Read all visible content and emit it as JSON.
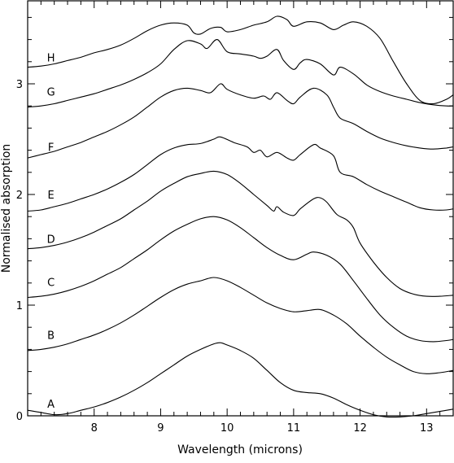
{
  "chart_data": {
    "type": "line",
    "title": "",
    "xlabel": "Wavelength (microns)",
    "ylabel": "Normalised absorption",
    "xlim": [
      7.0,
      13.4
    ],
    "ylim": [
      0.0,
      3.75
    ],
    "x_ticks": [
      "8",
      "9",
      "10",
      "11",
      "12",
      "13"
    ],
    "y_ticks": [
      "0",
      "1",
      "2",
      "3"
    ],
    "grid": false,
    "legend": "none",
    "series": [
      {
        "name": "A",
        "label_point": [
          7.35,
          0.11
        ],
        "points": [
          [
            7.0,
            0.05
          ],
          [
            7.2,
            0.03
          ],
          [
            7.4,
            0.01
          ],
          [
            7.6,
            0.02
          ],
          [
            7.8,
            0.05
          ],
          [
            8.0,
            0.08
          ],
          [
            8.2,
            0.12
          ],
          [
            8.4,
            0.17
          ],
          [
            8.6,
            0.23
          ],
          [
            8.8,
            0.3
          ],
          [
            9.0,
            0.38
          ],
          [
            9.2,
            0.46
          ],
          [
            9.4,
            0.54
          ],
          [
            9.6,
            0.6
          ],
          [
            9.8,
            0.65
          ],
          [
            9.9,
            0.66
          ],
          [
            10.0,
            0.64
          ],
          [
            10.2,
            0.59
          ],
          [
            10.4,
            0.52
          ],
          [
            10.6,
            0.41
          ],
          [
            10.8,
            0.3
          ],
          [
            11.0,
            0.23
          ],
          [
            11.2,
            0.21
          ],
          [
            11.4,
            0.2
          ],
          [
            11.6,
            0.16
          ],
          [
            11.8,
            0.1
          ],
          [
            12.0,
            0.05
          ],
          [
            12.2,
            0.01
          ],
          [
            12.4,
            -0.01
          ],
          [
            12.6,
            -0.01
          ],
          [
            12.8,
            0.0
          ],
          [
            13.0,
            0.02
          ],
          [
            13.2,
            0.04
          ],
          [
            13.4,
            0.06
          ]
        ]
      },
      {
        "name": "B",
        "label_point": [
          7.35,
          0.73
        ],
        "points": [
          [
            7.0,
            0.59
          ],
          [
            7.2,
            0.6
          ],
          [
            7.4,
            0.62
          ],
          [
            7.6,
            0.65
          ],
          [
            7.8,
            0.69
          ],
          [
            8.0,
            0.73
          ],
          [
            8.2,
            0.78
          ],
          [
            8.4,
            0.84
          ],
          [
            8.6,
            0.91
          ],
          [
            8.8,
            0.99
          ],
          [
            9.0,
            1.07
          ],
          [
            9.2,
            1.14
          ],
          [
            9.4,
            1.19
          ],
          [
            9.6,
            1.22
          ],
          [
            9.8,
            1.25
          ],
          [
            10.0,
            1.22
          ],
          [
            10.2,
            1.16
          ],
          [
            10.4,
            1.09
          ],
          [
            10.6,
            1.02
          ],
          [
            10.8,
            0.97
          ],
          [
            11.0,
            0.94
          ],
          [
            11.2,
            0.95
          ],
          [
            11.4,
            0.96
          ],
          [
            11.6,
            0.91
          ],
          [
            11.8,
            0.83
          ],
          [
            12.0,
            0.72
          ],
          [
            12.2,
            0.62
          ],
          [
            12.4,
            0.53
          ],
          [
            12.6,
            0.46
          ],
          [
            12.8,
            0.4
          ],
          [
            13.0,
            0.38
          ],
          [
            13.2,
            0.39
          ],
          [
            13.4,
            0.41
          ]
        ]
      },
      {
        "name": "C",
        "label_point": [
          7.35,
          1.21
        ],
        "points": [
          [
            7.0,
            1.07
          ],
          [
            7.2,
            1.08
          ],
          [
            7.4,
            1.1
          ],
          [
            7.6,
            1.13
          ],
          [
            7.8,
            1.17
          ],
          [
            8.0,
            1.22
          ],
          [
            8.2,
            1.28
          ],
          [
            8.4,
            1.34
          ],
          [
            8.6,
            1.42
          ],
          [
            8.8,
            1.5
          ],
          [
            9.0,
            1.59
          ],
          [
            9.2,
            1.67
          ],
          [
            9.4,
            1.73
          ],
          [
            9.6,
            1.78
          ],
          [
            9.8,
            1.8
          ],
          [
            10.0,
            1.77
          ],
          [
            10.2,
            1.7
          ],
          [
            10.4,
            1.61
          ],
          [
            10.6,
            1.52
          ],
          [
            10.8,
            1.45
          ],
          [
            11.0,
            1.41
          ],
          [
            11.2,
            1.46
          ],
          [
            11.3,
            1.48
          ],
          [
            11.5,
            1.45
          ],
          [
            11.7,
            1.37
          ],
          [
            11.9,
            1.22
          ],
          [
            12.1,
            1.06
          ],
          [
            12.3,
            0.91
          ],
          [
            12.5,
            0.8
          ],
          [
            12.7,
            0.72
          ],
          [
            12.9,
            0.68
          ],
          [
            13.1,
            0.67
          ],
          [
            13.3,
            0.68
          ],
          [
            13.4,
            0.69
          ]
        ]
      },
      {
        "name": "D",
        "label_point": [
          7.35,
          1.6
        ],
        "points": [
          [
            7.0,
            1.51
          ],
          [
            7.2,
            1.52
          ],
          [
            7.4,
            1.54
          ],
          [
            7.6,
            1.57
          ],
          [
            7.8,
            1.61
          ],
          [
            8.0,
            1.66
          ],
          [
            8.2,
            1.72
          ],
          [
            8.4,
            1.78
          ],
          [
            8.6,
            1.86
          ],
          [
            8.8,
            1.94
          ],
          [
            9.0,
            2.03
          ],
          [
            9.2,
            2.1
          ],
          [
            9.4,
            2.16
          ],
          [
            9.6,
            2.19
          ],
          [
            9.8,
            2.21
          ],
          [
            10.0,
            2.18
          ],
          [
            10.2,
            2.1
          ],
          [
            10.4,
            2.0
          ],
          [
            10.6,
            1.9
          ],
          [
            10.7,
            1.85
          ],
          [
            10.75,
            1.89
          ],
          [
            10.85,
            1.84
          ],
          [
            11.0,
            1.81
          ],
          [
            11.1,
            1.87
          ],
          [
            11.3,
            1.96
          ],
          [
            11.4,
            1.97
          ],
          [
            11.5,
            1.93
          ],
          [
            11.65,
            1.82
          ],
          [
            11.8,
            1.77
          ],
          [
            11.9,
            1.7
          ],
          [
            12.0,
            1.56
          ],
          [
            12.2,
            1.39
          ],
          [
            12.4,
            1.25
          ],
          [
            12.6,
            1.15
          ],
          [
            12.8,
            1.1
          ],
          [
            13.0,
            1.08
          ],
          [
            13.2,
            1.08
          ],
          [
            13.4,
            1.09
          ]
        ]
      },
      {
        "name": "E",
        "label_point": [
          7.35,
          2.0
        ],
        "points": [
          [
            7.0,
            1.85
          ],
          [
            7.2,
            1.86
          ],
          [
            7.4,
            1.89
          ],
          [
            7.6,
            1.92
          ],
          [
            7.8,
            1.96
          ],
          [
            8.0,
            2.0
          ],
          [
            8.2,
            2.05
          ],
          [
            8.4,
            2.11
          ],
          [
            8.6,
            2.18
          ],
          [
            8.8,
            2.27
          ],
          [
            9.0,
            2.36
          ],
          [
            9.2,
            2.42
          ],
          [
            9.4,
            2.45
          ],
          [
            9.6,
            2.46
          ],
          [
            9.8,
            2.5
          ],
          [
            9.9,
            2.52
          ],
          [
            10.1,
            2.47
          ],
          [
            10.3,
            2.43
          ],
          [
            10.4,
            2.38
          ],
          [
            10.5,
            2.4
          ],
          [
            10.6,
            2.34
          ],
          [
            10.75,
            2.38
          ],
          [
            10.9,
            2.33
          ],
          [
            11.0,
            2.31
          ],
          [
            11.1,
            2.36
          ],
          [
            11.3,
            2.45
          ],
          [
            11.4,
            2.42
          ],
          [
            11.6,
            2.35
          ],
          [
            11.7,
            2.2
          ],
          [
            11.9,
            2.16
          ],
          [
            12.1,
            2.09
          ],
          [
            12.3,
            2.03
          ],
          [
            12.5,
            1.98
          ],
          [
            12.7,
            1.93
          ],
          [
            12.9,
            1.88
          ],
          [
            13.1,
            1.86
          ],
          [
            13.3,
            1.86
          ],
          [
            13.4,
            1.87
          ]
        ]
      },
      {
        "name": "F",
        "label_point": [
          7.35,
          2.43
        ],
        "points": [
          [
            7.0,
            2.33
          ],
          [
            7.2,
            2.36
          ],
          [
            7.4,
            2.39
          ],
          [
            7.6,
            2.43
          ],
          [
            7.8,
            2.47
          ],
          [
            8.0,
            2.52
          ],
          [
            8.2,
            2.57
          ],
          [
            8.4,
            2.63
          ],
          [
            8.6,
            2.7
          ],
          [
            8.8,
            2.79
          ],
          [
            9.0,
            2.88
          ],
          [
            9.2,
            2.94
          ],
          [
            9.4,
            2.96
          ],
          [
            9.6,
            2.94
          ],
          [
            9.75,
            2.92
          ],
          [
            9.9,
            3.0
          ],
          [
            10.0,
            2.95
          ],
          [
            10.2,
            2.9
          ],
          [
            10.4,
            2.87
          ],
          [
            10.55,
            2.89
          ],
          [
            10.65,
            2.86
          ],
          [
            10.75,
            2.92
          ],
          [
            10.9,
            2.85
          ],
          [
            11.0,
            2.82
          ],
          [
            11.1,
            2.88
          ],
          [
            11.3,
            2.96
          ],
          [
            11.5,
            2.9
          ],
          [
            11.6,
            2.79
          ],
          [
            11.7,
            2.69
          ],
          [
            11.9,
            2.64
          ],
          [
            12.1,
            2.57
          ],
          [
            12.3,
            2.51
          ],
          [
            12.5,
            2.47
          ],
          [
            12.7,
            2.44
          ],
          [
            12.9,
            2.42
          ],
          [
            13.1,
            2.41
          ],
          [
            13.3,
            2.42
          ],
          [
            13.4,
            2.43
          ]
        ]
      },
      {
        "name": "G",
        "label_point": [
          7.35,
          2.93
        ],
        "points": [
          [
            7.0,
            2.79
          ],
          [
            7.2,
            2.8
          ],
          [
            7.4,
            2.82
          ],
          [
            7.6,
            2.85
          ],
          [
            7.8,
            2.88
          ],
          [
            8.0,
            2.91
          ],
          [
            8.2,
            2.95
          ],
          [
            8.4,
            2.99
          ],
          [
            8.6,
            3.04
          ],
          [
            8.8,
            3.1
          ],
          [
            9.0,
            3.18
          ],
          [
            9.2,
            3.31
          ],
          [
            9.4,
            3.39
          ],
          [
            9.6,
            3.36
          ],
          [
            9.7,
            3.32
          ],
          [
            9.85,
            3.4
          ],
          [
            10.0,
            3.29
          ],
          [
            10.2,
            3.27
          ],
          [
            10.4,
            3.25
          ],
          [
            10.5,
            3.23
          ],
          [
            10.6,
            3.25
          ],
          [
            10.75,
            3.31
          ],
          [
            10.85,
            3.21
          ],
          [
            11.0,
            3.13
          ],
          [
            11.1,
            3.19
          ],
          [
            11.2,
            3.22
          ],
          [
            11.4,
            3.18
          ],
          [
            11.6,
            3.08
          ],
          [
            11.7,
            3.15
          ],
          [
            11.9,
            3.09
          ],
          [
            12.1,
            2.99
          ],
          [
            12.3,
            2.93
          ],
          [
            12.5,
            2.89
          ],
          [
            12.7,
            2.86
          ],
          [
            12.9,
            2.83
          ],
          [
            13.1,
            2.81
          ],
          [
            13.3,
            2.8
          ],
          [
            13.4,
            2.8
          ]
        ]
      },
      {
        "name": "H",
        "label_point": [
          7.35,
          3.24
        ],
        "points": [
          [
            7.0,
            3.15
          ],
          [
            7.2,
            3.16
          ],
          [
            7.4,
            3.18
          ],
          [
            7.6,
            3.21
          ],
          [
            7.8,
            3.24
          ],
          [
            8.0,
            3.28
          ],
          [
            8.2,
            3.31
          ],
          [
            8.4,
            3.35
          ],
          [
            8.6,
            3.41
          ],
          [
            8.8,
            3.48
          ],
          [
            9.0,
            3.53
          ],
          [
            9.2,
            3.55
          ],
          [
            9.4,
            3.53
          ],
          [
            9.5,
            3.46
          ],
          [
            9.6,
            3.45
          ],
          [
            9.75,
            3.5
          ],
          [
            9.9,
            3.51
          ],
          [
            10.0,
            3.47
          ],
          [
            10.2,
            3.49
          ],
          [
            10.4,
            3.53
          ],
          [
            10.6,
            3.56
          ],
          [
            10.75,
            3.61
          ],
          [
            10.9,
            3.58
          ],
          [
            11.0,
            3.52
          ],
          [
            11.2,
            3.56
          ],
          [
            11.4,
            3.55
          ],
          [
            11.6,
            3.49
          ],
          [
            11.75,
            3.53
          ],
          [
            11.9,
            3.56
          ],
          [
            12.1,
            3.52
          ],
          [
            12.3,
            3.41
          ],
          [
            12.5,
            3.2
          ],
          [
            12.7,
            3.0
          ],
          [
            12.9,
            2.85
          ],
          [
            13.1,
            2.82
          ],
          [
            13.3,
            2.86
          ],
          [
            13.4,
            2.9
          ]
        ]
      }
    ]
  }
}
